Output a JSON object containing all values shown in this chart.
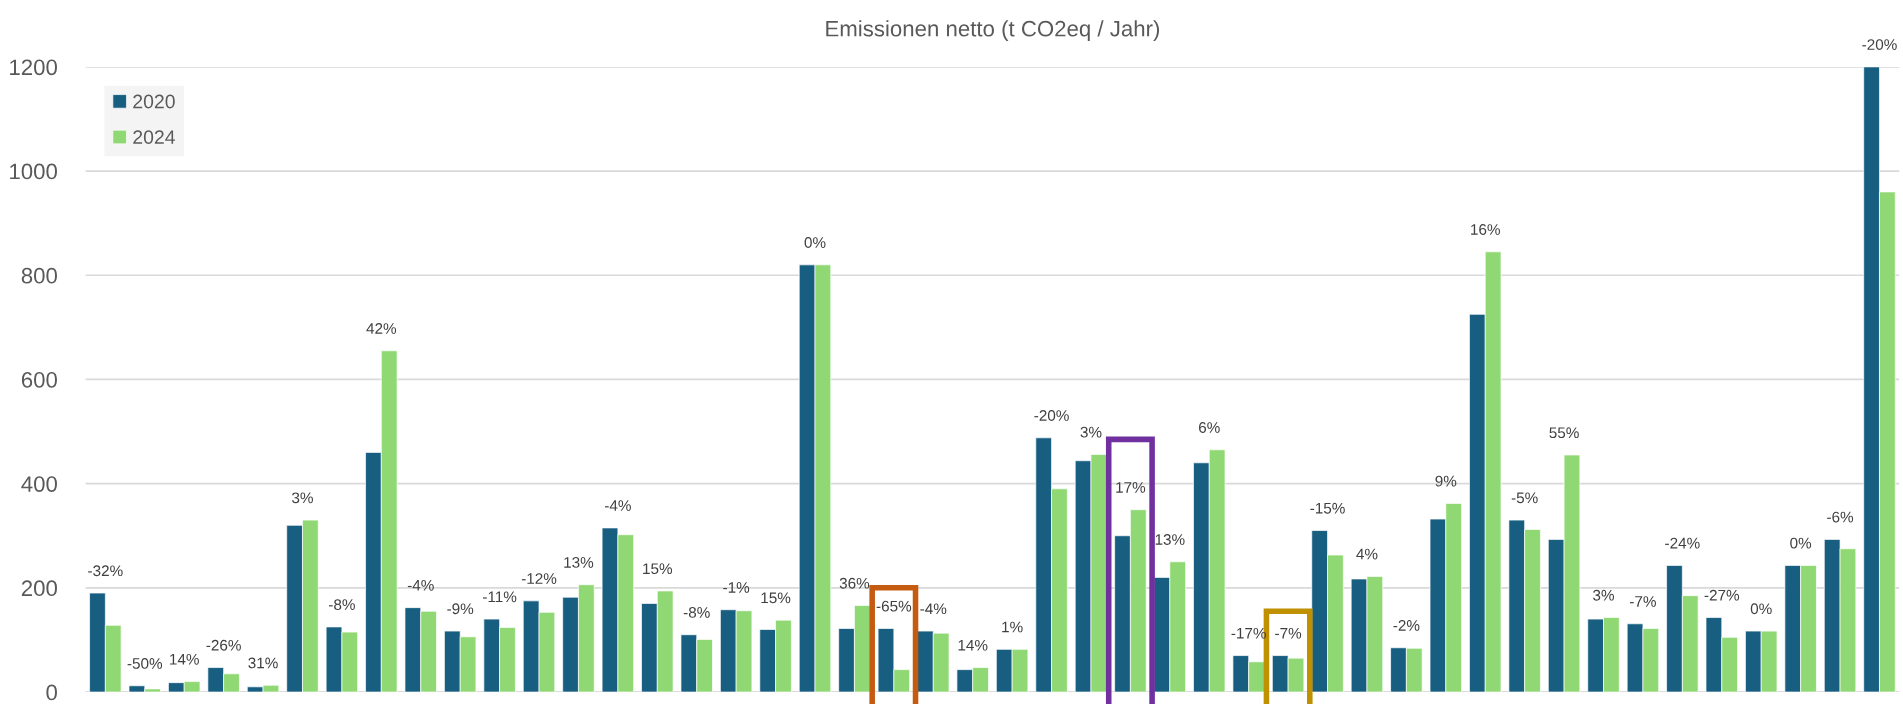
{
  "chart_data": {
    "type": "bar",
    "title": "Emissionen netto (t CO2eq / Jahr)",
    "categories": [
      null,
      null,
      null,
      null,
      null,
      null,
      null,
      null,
      null,
      null,
      null,
      null,
      null,
      null,
      null,
      null,
      null,
      null,
      null,
      null,
      null,
      null,
      null,
      null,
      null,
      null,
      null,
      null,
      null,
      null,
      null,
      null,
      null,
      null,
      null,
      null,
      null,
      null,
      null,
      null,
      null,
      null,
      null,
      null,
      null,
      null
    ],
    "annotations": [
      "-32%",
      "-50%",
      "14%",
      "-26%",
      "31%",
      "3%",
      "-8%",
      "42%",
      "-4%",
      "-9%",
      "-11%",
      "-12%",
      "13%",
      "-4%",
      "15%",
      "-8%",
      "-1%",
      "15%",
      "0%",
      "36%",
      "-65%",
      "-4%",
      "14%",
      "1%",
      "-20%",
      "3%",
      "17%",
      "13%",
      "6%",
      "-17%",
      "-7%",
      "-15%",
      "4%",
      "-2%",
      "9%",
      "16%",
      "-5%",
      "55%",
      "3%",
      "-7%",
      "-24%",
      "-27%",
      "0%",
      "0%",
      "-6%",
      "-20%"
    ],
    "series": [
      {
        "name": "2020",
        "color": "#175e80",
        "values": [
          190,
          12,
          18,
          47,
          10,
          320,
          125,
          460,
          162,
          117,
          140,
          175,
          182,
          315,
          170,
          110,
          158,
          120,
          820,
          122,
          122,
          117,
          43,
          82,
          488,
          444,
          300,
          220,
          440,
          70,
          70,
          310,
          217,
          85,
          332,
          725,
          330,
          293,
          140,
          131,
          243,
          143,
          117,
          243,
          293,
          1200
        ]
      },
      {
        "name": "2024",
        "color": "#8fd873",
        "values": [
          128,
          6,
          20,
          35,
          13,
          330,
          115,
          655,
          155,
          106,
          124,
          153,
          206,
          302,
          194,
          101,
          156,
          138,
          820,
          166,
          43,
          113,
          47,
          82,
          390,
          456,
          350,
          250,
          465,
          58,
          65,
          263,
          222,
          84,
          362,
          845,
          312,
          455,
          143,
          122,
          185,
          105,
          117,
          243,
          275,
          960
        ]
      }
    ],
    "ylim": [
      0,
      1200
    ],
    "yticks": [
      0,
      200,
      400,
      600,
      800,
      1000,
      1200
    ],
    "grid": "y",
    "legend": "top left"
  }
}
